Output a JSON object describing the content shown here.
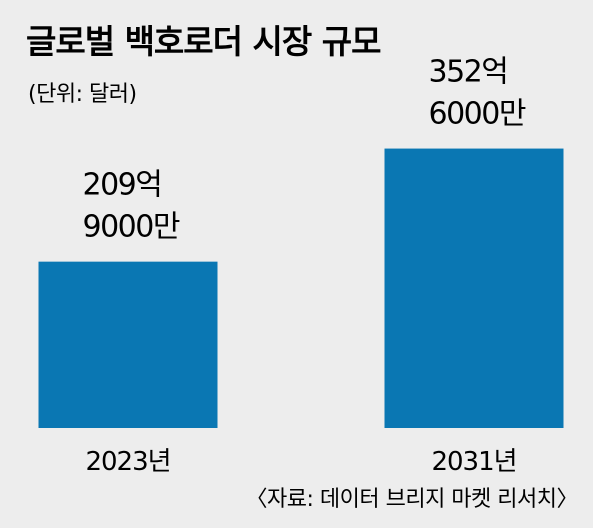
{
  "chart_data": {
    "type": "bar",
    "title": "글로벌 백호로더 시장 규모",
    "unit_label": "(단위: 달러)",
    "categories": [
      "2023년",
      "2031년"
    ],
    "values": [
      20990000000,
      35260000000
    ],
    "value_labels": [
      [
        "209억",
        "9000만"
      ],
      [
        "352억",
        "6000만"
      ]
    ],
    "ylim": [
      0,
      40000000000
    ],
    "bar_color": "#0a77b3",
    "source": "〈자료: 데이터 브리지 마켓 리서치〉",
    "grid": false,
    "legend": "none"
  }
}
